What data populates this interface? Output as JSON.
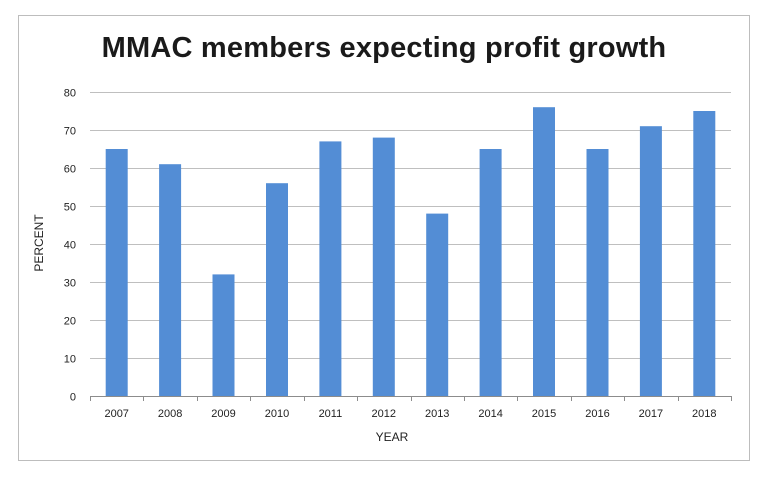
{
  "chart_data": {
    "type": "bar",
    "title": "MMAC members expecting profit growth",
    "xlabel": "YEAR",
    "ylabel": "PERCENT",
    "categories": [
      "2007",
      "2008",
      "2009",
      "2010",
      "2011",
      "2012",
      "2013",
      "2014",
      "2015",
      "2016",
      "2017",
      "2018"
    ],
    "values": [
      65,
      61,
      32,
      56,
      67,
      68,
      48,
      65,
      76,
      65,
      71,
      75
    ],
    "ylim": [
      0,
      80
    ],
    "yticks": [
      0,
      10,
      20,
      30,
      40,
      50,
      60,
      70,
      80
    ],
    "grid": true,
    "legend": "none",
    "bar_color": "#538dd5",
    "grid_color": "#bfbfbf",
    "axis_color": "#8c8c8c"
  }
}
